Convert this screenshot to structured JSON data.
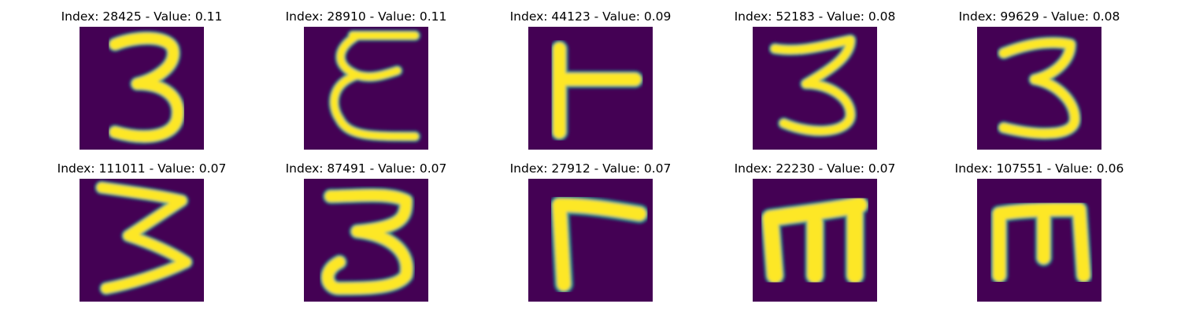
{
  "colors": {
    "background": "#440154",
    "mid": "#21918c",
    "foreground": "#fde725"
  },
  "samples": [
    {
      "title": "Index: 28425 - Value: 0.11",
      "glyph": "3"
    },
    {
      "title": "Index: 28910 - Value: 0.11",
      "glyph": "cursive-e"
    },
    {
      "title": "Index: 44123 - Value: 0.09",
      "glyph": "T-left"
    },
    {
      "title": "Index: 52183 - Value: 0.08",
      "glyph": "3"
    },
    {
      "title": "Index: 99629 - Value: 0.08",
      "glyph": "3"
    },
    {
      "title": "Index: 111011 - Value: 0.07",
      "glyph": "3-sharp"
    },
    {
      "title": "Index: 87491 - Value: 0.07",
      "glyph": "3-flat"
    },
    {
      "title": "Index: 27912 - Value: 0.07",
      "glyph": "Gamma"
    },
    {
      "title": "Index: 22230 - Value: 0.07",
      "glyph": "m"
    },
    {
      "title": "Index: 107551 - Value: 0.06",
      "glyph": "E-up"
    }
  ]
}
